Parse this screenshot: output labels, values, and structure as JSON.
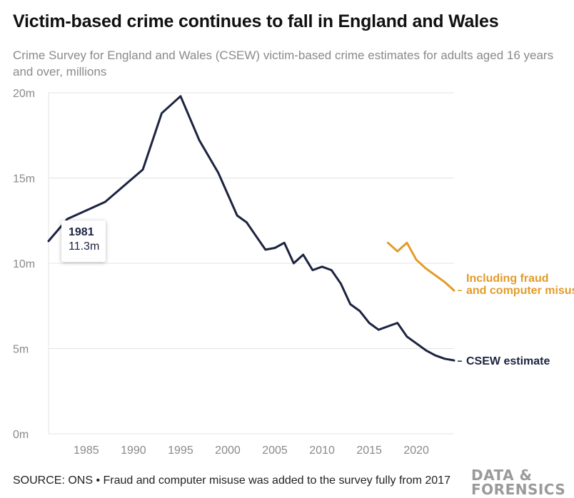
{
  "header": {
    "title": "Victim-based crime continues to fall in England and Wales",
    "subtitle": "Crime Survey for England and Wales (CSEW) victim-based crime estimates for adults aged 16 years and over, millions"
  },
  "tooltip": {
    "year": "1981",
    "value": "11.3m"
  },
  "footer": {
    "source": "SOURCE: ONS • Fraud and computer misuse was added to the survey fully from 2017"
  },
  "logo": {
    "line1": "DATA &",
    "line2": "FORENSICS"
  },
  "colors": {
    "csew": "#1c2340",
    "fraud": "#e39b2a",
    "grid": "#e3e3e3",
    "tick_text": "#8a8a8a"
  },
  "chart_data": {
    "type": "line",
    "title": "Victim-based crime continues to fall in England and Wales",
    "xlim": [
      1981,
      2024
    ],
    "ylim": [
      0,
      20
    ],
    "y_ticks": [
      0,
      5,
      10,
      15,
      20
    ],
    "y_tick_labels": [
      "0m",
      "5m",
      "10m",
      "15m",
      "20m"
    ],
    "x_ticks": [
      1985,
      1990,
      1995,
      2000,
      2005,
      2010,
      2015,
      2020
    ],
    "x_tick_labels": [
      "1985",
      "1990",
      "1995",
      "2000",
      "2005",
      "2010",
      "2015",
      "2020"
    ],
    "grid": true,
    "series": [
      {
        "name": "CSEW estimate",
        "color": "#1c2340",
        "x": [
          1981,
          1983,
          1987,
          1991,
          1993,
          1995,
          1997,
          1999,
          2001,
          2002,
          2003,
          2004,
          2005,
          2006,
          2007,
          2008,
          2009,
          2010,
          2011,
          2012,
          2013,
          2014,
          2015,
          2016,
          2017,
          2018,
          2019,
          2020,
          2021,
          2022,
          2023,
          2024
        ],
        "values": [
          11.3,
          12.6,
          13.6,
          15.5,
          18.8,
          19.8,
          17.2,
          15.3,
          12.8,
          12.4,
          11.6,
          10.8,
          10.9,
          11.2,
          10.0,
          10.5,
          9.6,
          9.8,
          9.6,
          8.8,
          7.6,
          7.2,
          6.5,
          6.1,
          6.3,
          6.5,
          5.7,
          5.3,
          4.9,
          4.6,
          4.4,
          4.3
        ]
      },
      {
        "name": "Including fraud and computer misuse",
        "color": "#e39b2a",
        "x": [
          2017,
          2018,
          2019,
          2020,
          2021,
          2022,
          2023,
          2024
        ],
        "values": [
          11.2,
          10.7,
          11.2,
          10.2,
          9.7,
          9.3,
          8.9,
          8.4
        ]
      }
    ]
  }
}
